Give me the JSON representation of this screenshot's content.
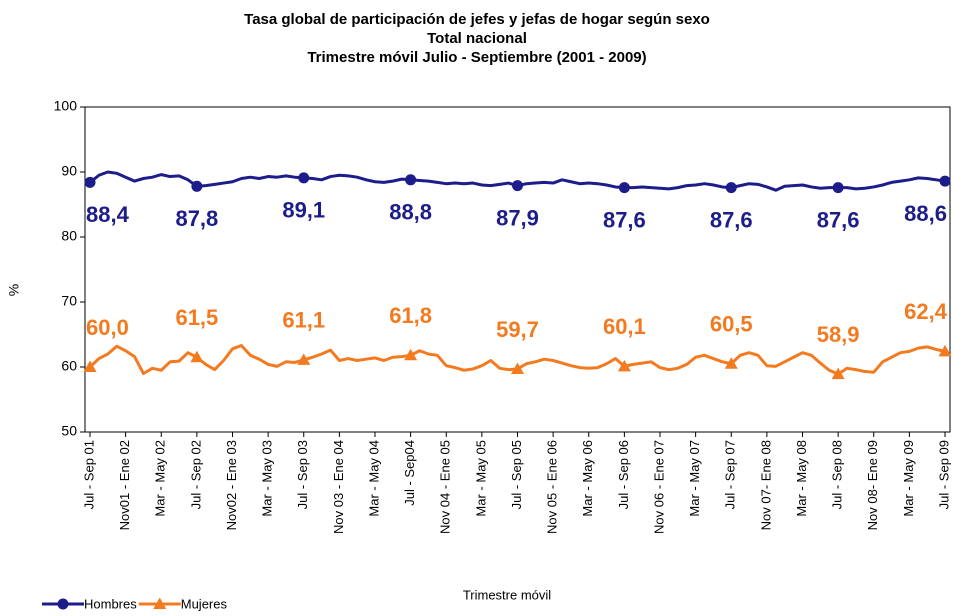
{
  "chart_data": {
    "type": "line",
    "title": "Tasa global de participación de jefes y jefas de hogar según sexo",
    "subtitle": [
      "Total nacional",
      "Trimestre móvil Julio - Septiembre (2001 - 2009)"
    ],
    "x_label": "Trimestre móvil",
    "y_label": "%",
    "legend": "bottom-left",
    "grid": false,
    "ylim": [
      50,
      100
    ],
    "yticks": [
      50,
      60,
      70,
      80,
      90,
      100
    ],
    "categories": [
      "Jul - Sep 01",
      null,
      null,
      null,
      "Nov01 - Ene 02",
      null,
      null,
      null,
      "Mar - May 02",
      null,
      null,
      null,
      "Jul - Sep 02",
      null,
      null,
      null,
      "Nov02 - Ene 03",
      null,
      null,
      null,
      "Mar - May 03",
      null,
      null,
      null,
      "Jul - Sep 03",
      null,
      null,
      null,
      "Nov 03 - Ene 04",
      null,
      null,
      null,
      "Mar - May 04",
      null,
      null,
      null,
      "Jul - Sep04",
      null,
      null,
      null,
      "Nov 04 - Ene 05",
      null,
      null,
      null,
      "Mar - May 05",
      null,
      null,
      null,
      "Jul - Sep 05",
      null,
      null,
      null,
      "Nov 05 - Ene 06",
      null,
      null,
      null,
      "Mar - May 06",
      null,
      null,
      null,
      "Jul - Sep 06",
      null,
      null,
      null,
      "Nov 06 - Ene 07",
      null,
      null,
      null,
      "Mar - May 07",
      null,
      null,
      null,
      "Jul - Sep 07",
      null,
      null,
      null,
      "Nov 07- Ene 08",
      null,
      null,
      null,
      "Mar - May 08",
      null,
      null,
      null,
      "Jul - Sep 08",
      null,
      null,
      null,
      "Nov 08- Ene 09",
      null,
      null,
      null,
      "Mar - May 09",
      null,
      null,
      null,
      "Jul - Sep 09"
    ],
    "series": [
      {
        "name": "Hombres",
        "color": "#1c1c8a",
        "marker": "circle",
        "label_position": "below",
        "values": [
          88.4,
          89.5,
          90.0,
          89.8,
          89.2,
          88.6,
          89.0,
          89.2,
          89.6,
          89.3,
          89.4,
          88.8,
          87.8,
          87.9,
          88.1,
          88.3,
          88.5,
          89.0,
          89.2,
          89.0,
          89.3,
          89.2,
          89.4,
          89.2,
          89.1,
          89.0,
          88.8,
          89.3,
          89.5,
          89.4,
          89.2,
          88.8,
          88.5,
          88.4,
          88.6,
          88.9,
          88.8,
          88.7,
          88.6,
          88.4,
          88.2,
          88.3,
          88.2,
          88.3,
          88.0,
          87.9,
          88.1,
          88.3,
          87.9,
          88.2,
          88.3,
          88.4,
          88.3,
          88.8,
          88.5,
          88.2,
          88.3,
          88.2,
          88.0,
          87.7,
          87.6,
          87.6,
          87.7,
          87.6,
          87.5,
          87.4,
          87.6,
          87.9,
          88.0,
          88.2,
          88.0,
          87.7,
          87.6,
          87.9,
          88.2,
          88.1,
          87.7,
          87.2,
          87.8,
          87.9,
          88.0,
          87.7,
          87.5,
          87.6,
          87.6,
          87.6,
          87.4,
          87.5,
          87.7,
          88.0,
          88.4,
          88.6,
          88.8,
          89.1,
          89.0,
          88.8,
          88.6
        ],
        "value_labels": [
          "88,4",
          null,
          null,
          null,
          null,
          null,
          null,
          null,
          null,
          null,
          null,
          null,
          "87,8",
          null,
          null,
          null,
          null,
          null,
          null,
          null,
          null,
          null,
          null,
          null,
          "89,1",
          null,
          null,
          null,
          null,
          null,
          null,
          null,
          null,
          null,
          null,
          null,
          "88,8",
          null,
          null,
          null,
          null,
          null,
          null,
          null,
          null,
          null,
          null,
          null,
          "87,9",
          null,
          null,
          null,
          null,
          null,
          null,
          null,
          null,
          null,
          null,
          null,
          "87,6",
          null,
          null,
          null,
          null,
          null,
          null,
          null,
          null,
          null,
          null,
          null,
          "87,6",
          null,
          null,
          null,
          null,
          null,
          null,
          null,
          null,
          null,
          null,
          null,
          "87,6",
          null,
          null,
          null,
          null,
          null,
          null,
          null,
          null,
          null,
          null,
          null,
          "88,6"
        ]
      },
      {
        "name": "Mujeres",
        "color": "#f47a20",
        "marker": "triangle",
        "label_position": "above",
        "values": [
          60.0,
          61.3,
          62.0,
          63.2,
          62.5,
          61.6,
          59.0,
          59.8,
          59.5,
          60.8,
          60.9,
          62.2,
          61.5,
          60.4,
          59.6,
          61.0,
          62.8,
          63.3,
          61.8,
          61.2,
          60.4,
          60.1,
          60.8,
          60.7,
          61.1,
          61.5,
          62.0,
          62.6,
          61.0,
          61.3,
          61.0,
          61.2,
          61.4,
          61.0,
          61.5,
          61.6,
          61.8,
          62.5,
          62.0,
          61.8,
          60.2,
          59.9,
          59.5,
          59.7,
          60.2,
          61.0,
          59.8,
          59.6,
          59.7,
          60.5,
          60.8,
          61.2,
          61.0,
          60.6,
          60.2,
          59.9,
          59.8,
          59.9,
          60.5,
          61.3,
          60.1,
          60.4,
          60.6,
          60.8,
          59.9,
          59.6,
          59.8,
          60.4,
          61.5,
          61.8,
          61.3,
          60.8,
          60.5,
          61.8,
          62.2,
          61.8,
          60.2,
          60.1,
          60.8,
          61.5,
          62.2,
          61.8,
          60.6,
          59.5,
          58.9,
          59.8,
          59.6,
          59.3,
          59.2,
          60.8,
          61.5,
          62.2,
          62.4,
          62.9,
          63.1,
          62.7,
          62.4
        ],
        "value_labels": [
          "60,0",
          null,
          null,
          null,
          null,
          null,
          null,
          null,
          null,
          null,
          null,
          null,
          "61,5",
          null,
          null,
          null,
          null,
          null,
          null,
          null,
          null,
          null,
          null,
          null,
          "61,1",
          null,
          null,
          null,
          null,
          null,
          null,
          null,
          null,
          null,
          null,
          null,
          "61,8",
          null,
          null,
          null,
          null,
          null,
          null,
          null,
          null,
          null,
          null,
          null,
          "59,7",
          null,
          null,
          null,
          null,
          null,
          null,
          null,
          null,
          null,
          null,
          null,
          "60,1",
          null,
          null,
          null,
          null,
          null,
          null,
          null,
          null,
          null,
          null,
          null,
          "60,5",
          null,
          null,
          null,
          null,
          null,
          null,
          null,
          null,
          null,
          null,
          null,
          "58,9",
          null,
          null,
          null,
          null,
          null,
          null,
          null,
          null,
          null,
          null,
          null,
          "62,4"
        ]
      }
    ]
  }
}
